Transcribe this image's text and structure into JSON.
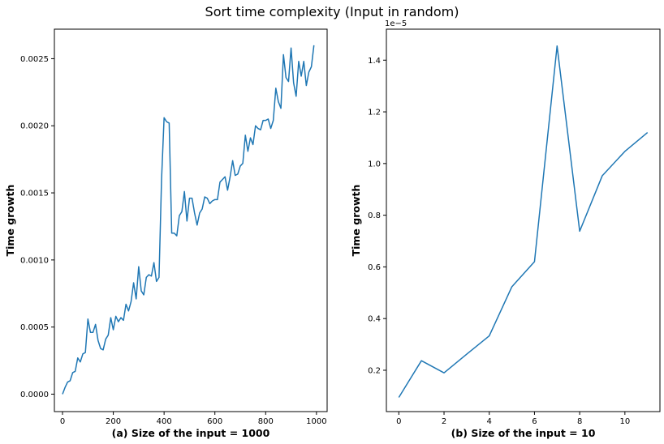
{
  "figure": {
    "title": "Sort time complexity (Input in random)"
  },
  "chart_data": [
    {
      "type": "line",
      "xlabel": "(a) Size of the input = 1000",
      "ylabel": "Time growth",
      "xlim": [
        -32,
        1042
      ],
      "ylim": [
        -0.00013,
        0.00272
      ],
      "xticks": [
        0,
        200,
        400,
        600,
        800,
        1000
      ],
      "xtick_labels": [
        "0",
        "200",
        "400",
        "600",
        "800",
        "1000"
      ],
      "yticks": [
        0,
        0.0005,
        0.001,
        0.0015,
        0.002,
        0.0025
      ],
      "ytick_labels": [
        "0.0000",
        "0.0005",
        "0.0010",
        "0.0015",
        "0.0020",
        "0.0025"
      ],
      "color": "#1f77b4",
      "x": [
        0,
        10,
        20,
        30,
        40,
        50,
        60,
        70,
        80,
        90,
        100,
        110,
        120,
        130,
        140,
        150,
        160,
        170,
        180,
        190,
        200,
        210,
        220,
        230,
        240,
        250,
        260,
        270,
        280,
        290,
        300,
        310,
        320,
        330,
        340,
        350,
        360,
        370,
        380,
        390,
        400,
        410,
        420,
        430,
        440,
        450,
        460,
        470,
        480,
        490,
        500,
        510,
        520,
        530,
        540,
        550,
        560,
        570,
        580,
        590,
        600,
        610,
        620,
        630,
        640,
        650,
        660,
        670,
        680,
        690,
        700,
        710,
        720,
        730,
        740,
        750,
        760,
        770,
        780,
        790,
        800,
        810,
        820,
        830,
        840,
        850,
        860,
        870,
        880,
        890,
        900,
        910,
        920,
        930,
        940,
        950,
        960,
        970,
        980,
        990
      ],
      "y": [
        0.0,
        5e-05,
        9e-05,
        0.0001,
        0.00016,
        0.00017,
        0.00027,
        0.00024,
        0.0003,
        0.00031,
        0.00056,
        0.00046,
        0.00046,
        0.00052,
        0.0004,
        0.00034,
        0.00033,
        0.00041,
        0.00044,
        0.00057,
        0.00048,
        0.00058,
        0.00054,
        0.00057,
        0.00055,
        0.00067,
        0.00062,
        0.00069,
        0.00083,
        0.00071,
        0.00095,
        0.00077,
        0.00074,
        0.00087,
        0.00089,
        0.00088,
        0.00098,
        0.00084,
        0.00087,
        0.0016,
        0.00206,
        0.00203,
        0.00202,
        0.0012,
        0.0012,
        0.00118,
        0.00133,
        0.00136,
        0.00151,
        0.00129,
        0.00146,
        0.00146,
        0.00135,
        0.00126,
        0.00135,
        0.00138,
        0.00147,
        0.00146,
        0.00142,
        0.00144,
        0.00145,
        0.00145,
        0.00158,
        0.0016,
        0.00162,
        0.00152,
        0.00162,
        0.00174,
        0.00163,
        0.00164,
        0.0017,
        0.00172,
        0.00193,
        0.00181,
        0.00191,
        0.00186,
        0.002,
        0.00198,
        0.00197,
        0.00204,
        0.00204,
        0.00205,
        0.00198,
        0.00204,
        0.00228,
        0.00218,
        0.00213,
        0.00253,
        0.00236,
        0.00233,
        0.00258,
        0.00232,
        0.00222,
        0.00248,
        0.00237,
        0.00248,
        0.0023,
        0.0024,
        0.00244,
        0.0026
      ]
    },
    {
      "type": "line",
      "xlabel": "(b) Size of the input = 10",
      "ylabel": "Time growth",
      "offset_label": "1e−5",
      "xlim": [
        -0.55,
        11.55
      ],
      "ylim": [
        0.04,
        1.52
      ],
      "xticks": [
        0,
        2,
        4,
        6,
        8,
        10
      ],
      "xtick_labels": [
        "0",
        "2",
        "4",
        "6",
        "8",
        "10"
      ],
      "yticks": [
        0.2,
        0.4,
        0.6,
        0.8,
        1.0,
        1.2,
        1.4
      ],
      "ytick_labels": [
        "0.2",
        "0.4",
        "0.6",
        "0.8",
        "1.0",
        "1.2",
        "1.4"
      ],
      "color": "#1f77b4",
      "x": [
        0,
        1,
        2,
        3,
        4,
        5,
        6,
        7,
        8,
        9,
        10,
        11
      ],
      "y": [
        0.095,
        0.237,
        0.19,
        0.262,
        0.333,
        0.523,
        0.62,
        1.455,
        0.738,
        0.953,
        1.047,
        1.12
      ]
    }
  ]
}
